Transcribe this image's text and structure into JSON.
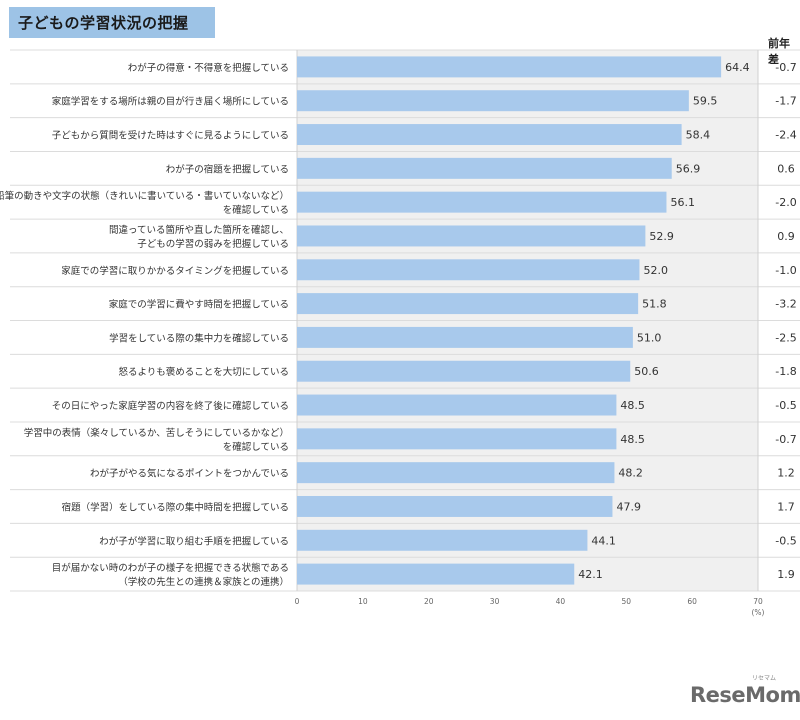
{
  "title": "子どもの学習状況の把握",
  "diff_header": "前年差",
  "brand": {
    "name": "ReseMom",
    "ruby": "リセマム"
  },
  "colors": {
    "bar": "#a8c9ec",
    "plot_bg": "#f0f0f0",
    "title_bg": "#9dc3e6"
  },
  "chart_data": {
    "type": "bar",
    "orientation": "horizontal",
    "title": "子どもの学習状況の把握",
    "unit_label": "(%)",
    "xlim": [
      0,
      70
    ],
    "ticks": [
      "0",
      "10",
      "20",
      "30",
      "40",
      "50",
      "60",
      "70"
    ],
    "categories": [
      [
        "わが子の得意・不得意を把握している"
      ],
      [
        "家庭学習をする場所は親の目が行き届く場所にしている"
      ],
      [
        "子どもから質問を受けた時はすぐに見るようにしている"
      ],
      [
        "わが子の宿題を把握している"
      ],
      [
        "鉛筆の動きや文字の状態（きれいに書いている・書いていないなど）",
        "を確認している"
      ],
      [
        "間違っている箇所や直した箇所を確認し、",
        "子どもの学習の弱みを把握している"
      ],
      [
        "家庭での学習に取りかかるタイミングを把握している"
      ],
      [
        "家庭での学習に費やす時間を把握している"
      ],
      [
        "学習をしている際の集中力を確認している"
      ],
      [
        "怒るよりも褒めることを大切にしている"
      ],
      [
        "その日にやった家庭学習の内容を終了後に確認している"
      ],
      [
        "学習中の表情（楽々しているか、苦しそうにしているかなど）",
        "を確認している"
      ],
      [
        "わが子がやる気になるポイントをつかんでいる"
      ],
      [
        "宿題（学習）をしている際の集中時間を把握している"
      ],
      [
        "わが子が学習に取り組む手順を把握している"
      ],
      [
        "目が届かない時のわが子の様子を把握できる状態である",
        "（学校の先生との連携＆家族との連携）"
      ]
    ],
    "values": [
      64.4,
      59.5,
      58.4,
      56.9,
      56.1,
      52.9,
      52.0,
      51.8,
      51.0,
      50.6,
      48.5,
      48.5,
      48.2,
      47.9,
      44.1,
      42.1
    ],
    "value_labels": [
      "64.4",
      "59.5",
      "58.4",
      "56.9",
      "56.1",
      "52.9",
      "52.0",
      "51.8",
      "51.0",
      "50.6",
      "48.5",
      "48.5",
      "48.2",
      "47.9",
      "44.1",
      "42.1"
    ],
    "yoy_diff": [
      "-0.7",
      "-1.7",
      "-2.4",
      "0.6",
      "-2.0",
      "0.9",
      "-1.0",
      "-3.2",
      "-2.5",
      "-1.8",
      "-0.5",
      "-0.7",
      "1.2",
      "1.7",
      "-0.5",
      "1.9"
    ]
  }
}
